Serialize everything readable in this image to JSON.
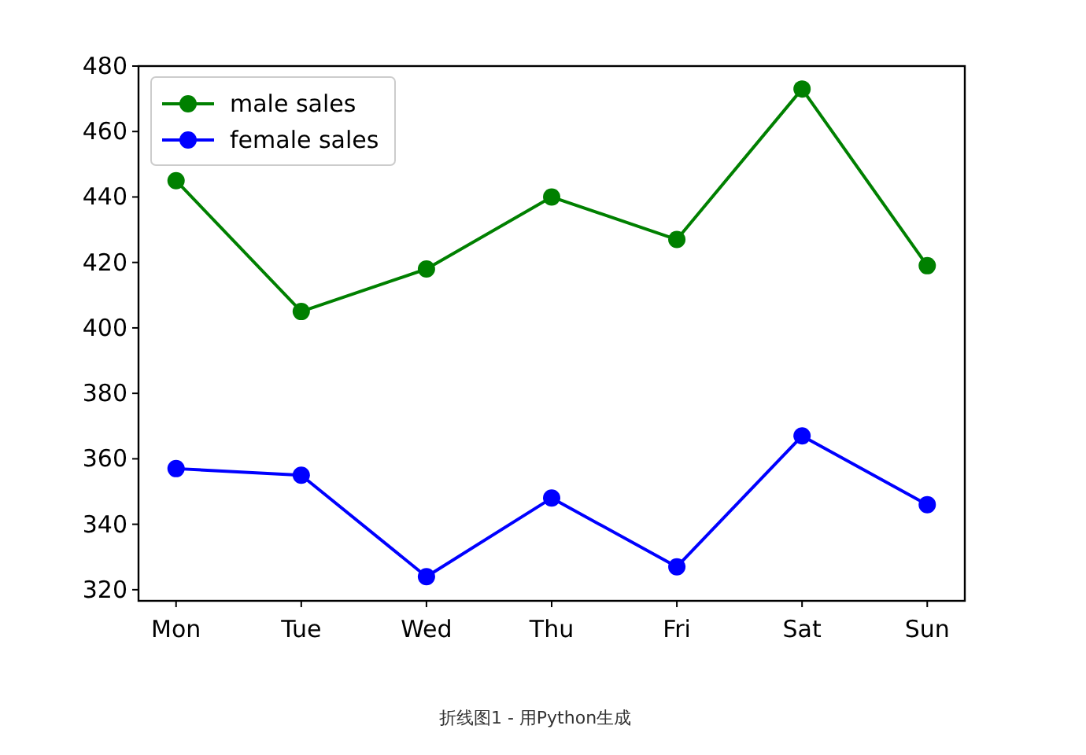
{
  "chart_data": {
    "type": "line",
    "categories": [
      "Mon",
      "Tue",
      "Wed",
      "Thu",
      "Fri",
      "Sat",
      "Sun"
    ],
    "series": [
      {
        "name": "male sales",
        "color": "#008000",
        "values": [
          445,
          405,
          418,
          440,
          427,
          473,
          419
        ]
      },
      {
        "name": "female sales",
        "color": "#0000ff",
        "values": [
          357,
          355,
          324,
          348,
          327,
          367,
          346
        ]
      }
    ],
    "ylim": [
      316.6,
      480
    ],
    "yticks": [
      320,
      340,
      360,
      380,
      400,
      420,
      440,
      460,
      480
    ],
    "marker": "circle",
    "line_style": "solid",
    "grid": false,
    "legend": "top left",
    "annotations": [
      "折线图1 - 用Python生成"
    ]
  }
}
